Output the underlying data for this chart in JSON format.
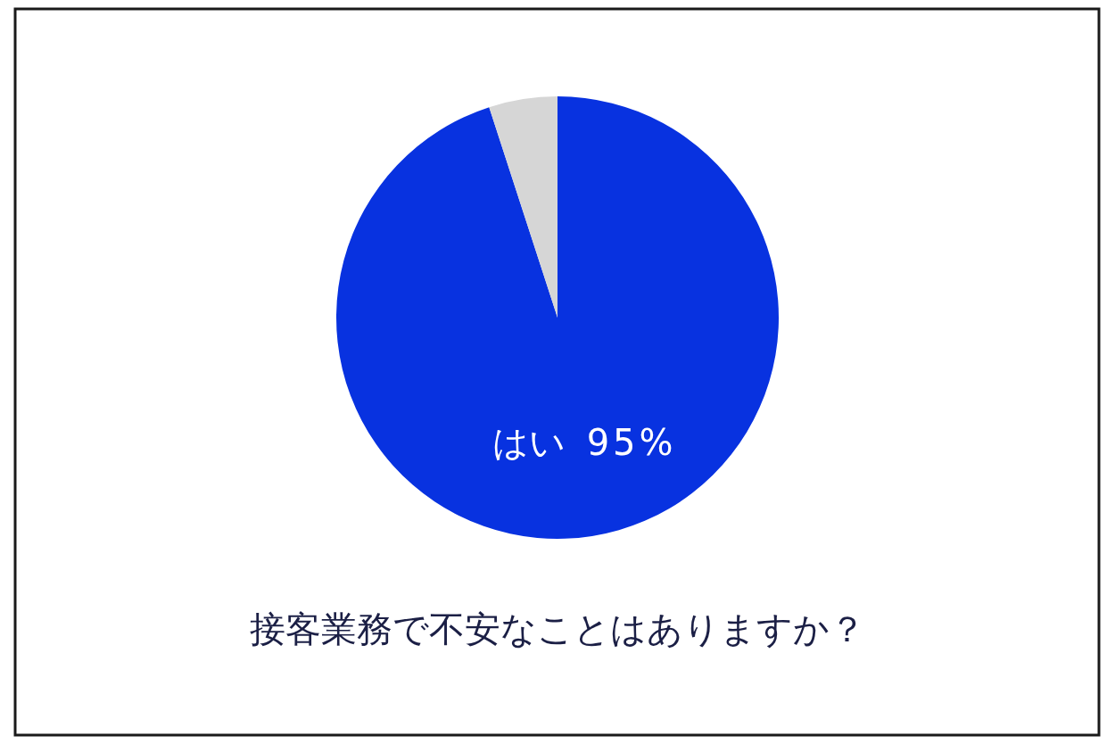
{
  "chart_data": {
    "type": "pie",
    "title": "接客業務で不安なことはありますか？",
    "categories": [
      "はい",
      null
    ],
    "values": [
      95,
      5
    ],
    "colors": [
      "#0832e0",
      "#d6d6d6"
    ],
    "value_labels": [
      "95%",
      null
    ],
    "legend": false
  }
}
